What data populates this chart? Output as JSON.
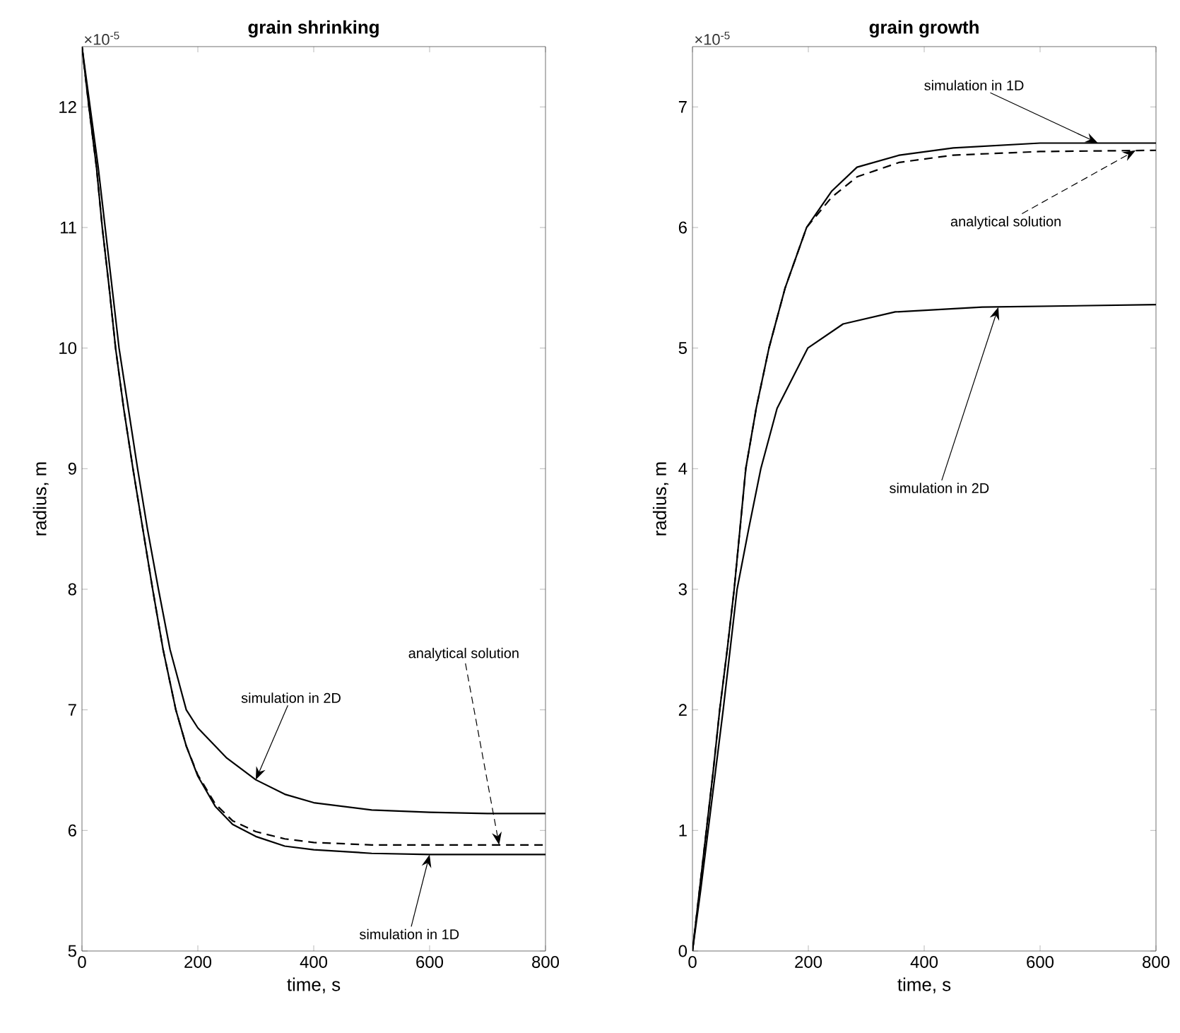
{
  "chart_data": [
    {
      "type": "line",
      "title": "grain shrinking",
      "xlabel": "time, s",
      "ylabel": "radius, m",
      "xlim": [
        0,
        800
      ],
      "ylim": [
        5,
        12.5
      ],
      "xticks": [
        0,
        200,
        400,
        600,
        800
      ],
      "yticks": [
        5,
        6,
        7,
        8,
        9,
        10,
        11,
        12
      ],
      "grid": false,
      "annotations": [
        "×10$^{-5}$",
        {
          "text": "simulation in 2D",
          "x": 300,
          "y": 6.42
        },
        {
          "text": "analytical solution",
          "x": 720,
          "y": 5.88
        },
        {
          "text": "simulation in 1D",
          "x": 600,
          "y": 5.8
        }
      ],
      "series": [
        {
          "color": "#000000",
          "line_style": "solid",
          "x": [
            0,
            14,
            28,
            40,
            52,
            64,
            80,
            96,
            113,
            132,
            152,
            180,
            200,
            250,
            300,
            350,
            400,
            500,
            600,
            700,
            800
          ],
          "values": [
            12.5,
            12,
            11.5,
            11,
            10.5,
            10,
            9.5,
            9,
            8.5,
            8,
            7.5,
            7,
            6.85,
            6.6,
            6.42,
            6.3,
            6.23,
            6.17,
            6.15,
            6.14,
            6.14
          ]
        },
        {
          "color": "#000000",
          "line_style": "dashed",
          "x": [
            0,
            12,
            25,
            35,
            47,
            58,
            72,
            88,
            105,
            122,
            140,
            162,
            180,
            200,
            230,
            260,
            300,
            350,
            400,
            500,
            600,
            800
          ],
          "values": [
            12.5,
            12,
            11.5,
            11,
            10.5,
            10,
            9.5,
            9,
            8.5,
            8,
            7.5,
            7,
            6.7,
            6.46,
            6.22,
            6.08,
            5.99,
            5.93,
            5.9,
            5.88,
            5.88,
            5.88
          ]
        },
        {
          "color": "#000000",
          "line_style": "solid",
          "x": [
            0,
            12,
            25,
            35,
            47,
            58,
            72,
            88,
            105,
            122,
            140,
            162,
            180,
            200,
            230,
            260,
            300,
            350,
            400,
            500,
            600,
            700,
            800
          ],
          "values": [
            12.5,
            12,
            11.5,
            11,
            10.5,
            10,
            9.5,
            9,
            8.5,
            8,
            7.5,
            7,
            6.7,
            6.45,
            6.2,
            6.05,
            5.95,
            5.87,
            5.84,
            5.81,
            5.8,
            5.8,
            5.8
          ]
        }
      ]
    },
    {
      "type": "line",
      "title": "grain growth",
      "xlabel": "time, s",
      "ylabel": "radius, m",
      "xlim": [
        0,
        800
      ],
      "ylim": [
        0,
        7.5
      ],
      "xticks": [
        0,
        200,
        400,
        600,
        800
      ],
      "yticks": [
        0,
        1,
        2,
        3,
        4,
        5,
        6,
        7
      ],
      "grid": false,
      "annotations": [
        "×10$^{-5}$",
        {
          "text": "simulation in 1D",
          "x": 700,
          "y": 6.7
        },
        {
          "text": "analytical solution",
          "x": 765,
          "y": 6.64
        },
        {
          "text": "simulation in 2D",
          "x": 528,
          "y": 5.34
        }
      ],
      "series": [
        {
          "color": "#000000",
          "line_style": "solid",
          "x": [
            0,
            12,
            24,
            36,
            47,
            60,
            72,
            92,
            110,
            132,
            160,
            197,
            240,
            284,
            357,
            450,
            600,
            800
          ],
          "values": [
            0,
            0.5,
            1,
            1.5,
            2,
            2.5,
            3,
            4,
            4.5,
            5,
            5.5,
            6,
            6.3,
            6.5,
            6.6,
            6.66,
            6.7,
            6.7
          ]
        },
        {
          "color": "#000000",
          "line_style": "dashed",
          "x": [
            0,
            12,
            24,
            36,
            47,
            60,
            72,
            92,
            110,
            132,
            160,
            197,
            240,
            284,
            357,
            450,
            600,
            800
          ],
          "values": [
            0,
            0.5,
            1,
            1.5,
            2,
            2.5,
            3,
            4,
            4.5,
            5,
            5.5,
            6,
            6.25,
            6.42,
            6.54,
            6.6,
            6.63,
            6.64
          ]
        },
        {
          "color": "#000000",
          "line_style": "solid",
          "x": [
            0,
            14,
            27,
            40,
            53,
            65,
            77,
            97,
            118,
            146,
            199,
            260,
            350,
            500,
            800
          ],
          "values": [
            0,
            0.5,
            1,
            1.5,
            2,
            2.5,
            3,
            3.5,
            4,
            4.5,
            5,
            5.2,
            5.3,
            5.34,
            5.36
          ]
        }
      ]
    }
  ]
}
